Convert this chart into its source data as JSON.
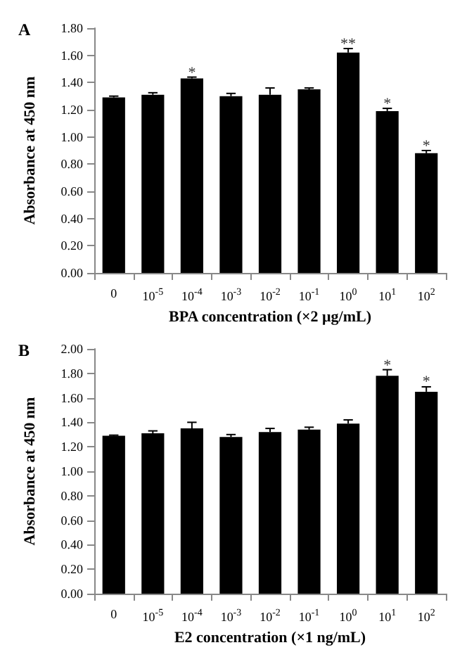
{
  "chart_data": [
    {
      "type": "bar",
      "title": "A",
      "ylabel": "Absorbance at 450 nm",
      "xlabel": "BPA concentration (×2 μg/mL)",
      "categories": [
        "0",
        "10$^{-5}$",
        "10$^{-4}$",
        "10$^{-3}$",
        "10$^{-2}$",
        "10$^{-1}$",
        "10$^{0}$",
        "10$^{1}$",
        "10$^{2}$"
      ],
      "values": [
        1.29,
        1.31,
        1.43,
        1.3,
        1.31,
        1.35,
        1.62,
        1.19,
        0.88
      ],
      "errors": [
        0.01,
        0.015,
        0.01,
        0.02,
        0.05,
        0.01,
        0.03,
        0.02,
        0.02
      ],
      "color": "#000000",
      "ylim": [
        0,
        1.8
      ],
      "yticks": [
        {
          "value": 0,
          "label": "0.00"
        },
        {
          "value": 0.2,
          "label": "0.20"
        },
        {
          "value": 0.4,
          "label": "0.40"
        },
        {
          "value": 0.6,
          "label": "0.60"
        },
        {
          "value": 0.8,
          "label": "0.80"
        },
        {
          "value": 1,
          "label": "1.00"
        },
        {
          "value": 1.2,
          "label": "1.20"
        },
        {
          "value": 1.4,
          "label": "1.40"
        },
        {
          "value": 1.6,
          "label": "1.60"
        },
        {
          "value": 1.8,
          "label": "1.80"
        }
      ],
      "annotations": [
        {
          "text": "*",
          "x": "10$^{-4}$",
          "y": 1.47
        },
        {
          "text": "**",
          "x": "10$^{0}$",
          "y": 1.68
        },
        {
          "text": "*",
          "x": "10$^{1}$",
          "y": 1.24
        },
        {
          "text": "*",
          "x": "10$^{2}$",
          "y": 0.93
        }
      ],
      "grid": false
    },
    {
      "type": "bar",
      "title": "B",
      "ylabel": "Absorbance at 450 nm",
      "xlabel": "E2 concentration (×1 ng/mL)",
      "categories": [
        "0",
        "10$^{-5}$",
        "10$^{-4}$",
        "10$^{-3}$",
        "10$^{-2}$",
        "10$^{-1}$",
        "10$^{0}$",
        "10$^{1}$",
        "10$^{2}$"
      ],
      "values": [
        1.29,
        1.31,
        1.35,
        1.28,
        1.32,
        1.34,
        1.39,
        1.78,
        1.65
      ],
      "errors": [
        0.005,
        0.02,
        0.05,
        0.02,
        0.03,
        0.02,
        0.03,
        0.05,
        0.04
      ],
      "color": "#000000",
      "ylim": [
        0,
        2
      ],
      "yticks": [
        {
          "value": 0,
          "label": "0.00"
        },
        {
          "value": 0.2,
          "label": "0.20"
        },
        {
          "value": 0.4,
          "label": "0.40"
        },
        {
          "value": 0.6,
          "label": "0.60"
        },
        {
          "value": 0.8,
          "label": "0.80"
        },
        {
          "value": 1,
          "label": "1.00"
        },
        {
          "value": 1.2,
          "label": "1.20"
        },
        {
          "value": 1.4,
          "label": "1.40"
        },
        {
          "value": 1.6,
          "label": "1.60"
        },
        {
          "value": 1.8,
          "label": "1.80"
        },
        {
          "value": 2,
          "label": "2.00"
        }
      ],
      "annotations": [
        {
          "text": "*",
          "x": "10$^{1}$",
          "y": 1.86
        },
        {
          "text": "*",
          "x": "10$^{2}$",
          "y": 1.73
        }
      ],
      "grid": false
    }
  ]
}
